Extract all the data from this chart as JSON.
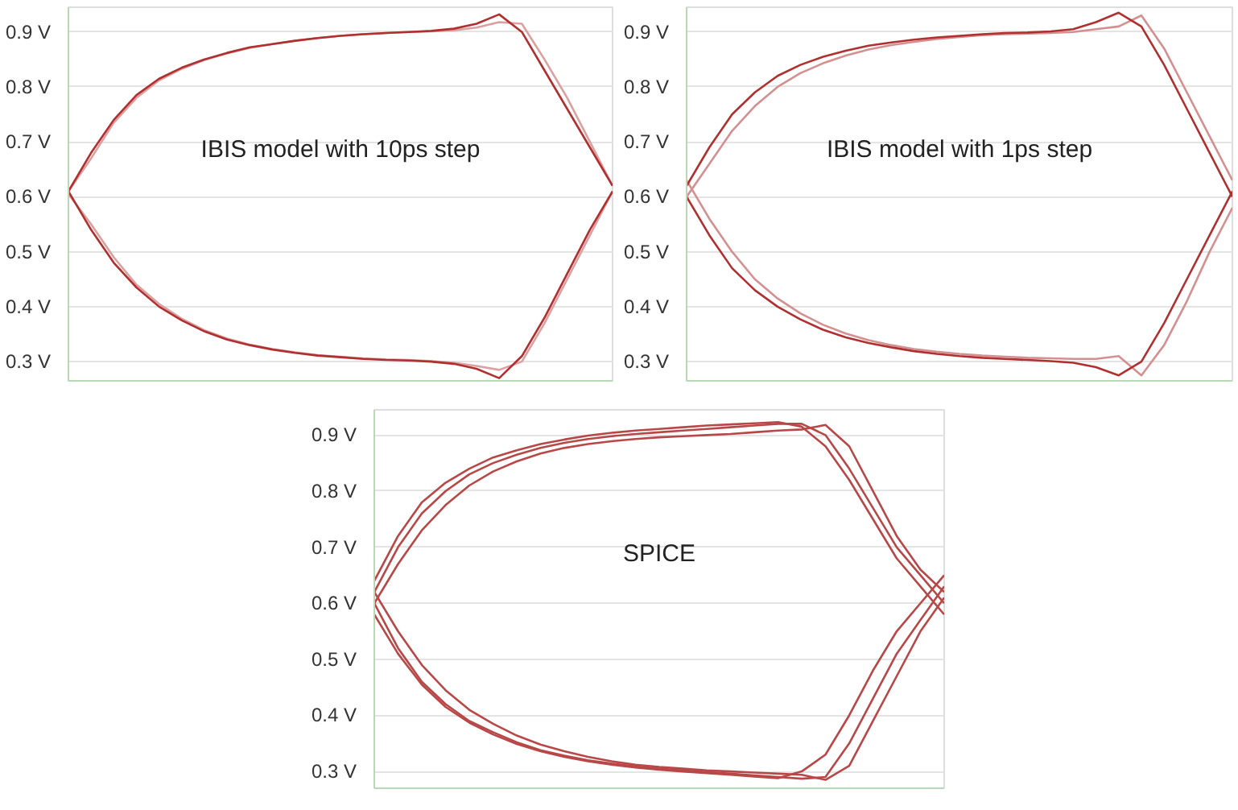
{
  "chart_data": [
    {
      "type": "line",
      "annotations": [
        "IBIS model with 10ps step"
      ],
      "categories": [
        null,
        null,
        null,
        null,
        null,
        null,
        null,
        null,
        null,
        null,
        null,
        null,
        null,
        null,
        null,
        null,
        null,
        null,
        null,
        null,
        null,
        null,
        null,
        null,
        null
      ],
      "ylim": [
        0.265,
        0.945
      ],
      "yticks": [
        {
          "value": 0.3,
          "label": "0.3 V"
        },
        {
          "value": 0.4,
          "label": "0.4 V"
        },
        {
          "value": 0.5,
          "label": "0.5 V"
        },
        {
          "value": 0.6,
          "label": "0.6 V"
        },
        {
          "value": 0.7,
          "label": "0.7 V"
        },
        {
          "value": 0.8,
          "label": "0.8 V"
        },
        {
          "value": 0.9,
          "label": "0.9 V"
        }
      ],
      "grid": "y",
      "tick_labels": "y",
      "series": [
        {
          "color": "#dca0a0",
          "values": [
            0.61,
            0.67,
            0.735,
            0.78,
            0.812,
            0.833,
            0.849,
            0.861,
            0.871,
            0.878,
            0.884,
            0.889,
            0.893,
            0.896,
            0.898,
            0.9,
            0.901,
            0.903,
            0.908,
            0.918,
            0.915,
            0.85,
            0.78,
            0.7,
            0.62
          ]
        },
        {
          "color": "#dca0a0",
          "values": [
            0.605,
            0.55,
            0.49,
            0.44,
            0.405,
            0.378,
            0.357,
            0.342,
            0.331,
            0.323,
            0.317,
            0.312,
            0.309,
            0.306,
            0.304,
            0.303,
            0.301,
            0.298,
            0.292,
            0.285,
            0.3,
            0.37,
            0.45,
            0.53,
            0.61
          ]
        },
        {
          "color": "#b03030",
          "values": [
            0.61,
            0.68,
            0.74,
            0.785,
            0.815,
            0.835,
            0.85,
            0.862,
            0.872,
            0.878,
            0.884,
            0.889,
            0.893,
            0.896,
            0.898,
            0.9,
            0.902,
            0.906,
            0.915,
            0.932,
            0.9,
            0.83,
            0.76,
            0.69,
            0.62
          ]
        },
        {
          "color": "#b03030",
          "values": [
            0.61,
            0.54,
            0.48,
            0.435,
            0.4,
            0.375,
            0.355,
            0.34,
            0.33,
            0.322,
            0.316,
            0.311,
            0.308,
            0.305,
            0.303,
            0.302,
            0.3,
            0.296,
            0.287,
            0.27,
            0.31,
            0.38,
            0.46,
            0.54,
            0.61
          ]
        }
      ]
    },
    {
      "type": "line",
      "annotations": [
        "IBIS model with 1ps step"
      ],
      "categories": [
        null,
        null,
        null,
        null,
        null,
        null,
        null,
        null,
        null,
        null,
        null,
        null,
        null,
        null,
        null,
        null,
        null,
        null,
        null,
        null,
        null,
        null,
        null,
        null,
        null
      ],
      "ylim": [
        0.265,
        0.945
      ],
      "yticks": [
        {
          "value": 0.3,
          "label": "0.3 V"
        },
        {
          "value": 0.4,
          "label": "0.4 V"
        },
        {
          "value": 0.5,
          "label": "0.5 V"
        },
        {
          "value": 0.6,
          "label": "0.6 V"
        },
        {
          "value": 0.7,
          "label": "0.7 V"
        },
        {
          "value": 0.8,
          "label": "0.8 V"
        },
        {
          "value": 0.9,
          "label": "0.9 V"
        }
      ],
      "grid": "y",
      "tick_labels": "y",
      "series": [
        {
          "color": "#d49090",
          "values": [
            0.6,
            0.66,
            0.72,
            0.765,
            0.8,
            0.825,
            0.843,
            0.857,
            0.868,
            0.876,
            0.882,
            0.887,
            0.891,
            0.894,
            0.896,
            0.897,
            0.898,
            0.9,
            0.905,
            0.91,
            0.93,
            0.87,
            0.79,
            0.71,
            0.63
          ]
        },
        {
          "color": "#d49090",
          "values": [
            0.63,
            0.56,
            0.5,
            0.45,
            0.415,
            0.388,
            0.367,
            0.351,
            0.339,
            0.33,
            0.323,
            0.318,
            0.314,
            0.311,
            0.309,
            0.307,
            0.306,
            0.305,
            0.305,
            0.31,
            0.275,
            0.33,
            0.41,
            0.5,
            0.58
          ]
        },
        {
          "color": "#b03030",
          "values": [
            0.62,
            0.69,
            0.75,
            0.79,
            0.82,
            0.84,
            0.855,
            0.866,
            0.875,
            0.881,
            0.886,
            0.89,
            0.893,
            0.896,
            0.898,
            0.899,
            0.901,
            0.905,
            0.918,
            0.935,
            0.91,
            0.84,
            0.76,
            0.68,
            0.6
          ]
        },
        {
          "color": "#b03030",
          "values": [
            0.6,
            0.53,
            0.47,
            0.43,
            0.4,
            0.377,
            0.358,
            0.344,
            0.334,
            0.326,
            0.319,
            0.314,
            0.31,
            0.307,
            0.305,
            0.303,
            0.301,
            0.298,
            0.29,
            0.275,
            0.3,
            0.37,
            0.45,
            0.53,
            0.61
          ]
        }
      ]
    },
    {
      "type": "line",
      "annotations": [
        "SPICE"
      ],
      "categories": [
        null,
        null,
        null,
        null,
        null,
        null,
        null,
        null,
        null,
        null,
        null,
        null,
        null,
        null,
        null,
        null,
        null,
        null,
        null,
        null,
        null,
        null,
        null,
        null,
        null
      ],
      "ylim": [
        0.27,
        0.945
      ],
      "yticks": [
        {
          "value": 0.3,
          "label": "0.3 V"
        },
        {
          "value": 0.4,
          "label": "0.4 V"
        },
        {
          "value": 0.5,
          "label": "0.5 V"
        },
        {
          "value": 0.6,
          "label": "0.6 V"
        },
        {
          "value": 0.7,
          "label": "0.7 V"
        },
        {
          "value": 0.8,
          "label": "0.8 V"
        },
        {
          "value": 0.9,
          "label": "0.9 V"
        }
      ],
      "grid": "y",
      "tick_labels": "y",
      "series": [
        {
          "color": "#b84848",
          "values": [
            0.62,
            0.7,
            0.76,
            0.8,
            0.83,
            0.85,
            0.865,
            0.877,
            0.886,
            0.893,
            0.898,
            0.902,
            0.905,
            0.908,
            0.911,
            0.914,
            0.917,
            0.92,
            0.92,
            0.9,
            0.84,
            0.77,
            0.7,
            0.65,
            0.6
          ]
        },
        {
          "color": "#b84848",
          "values": [
            0.6,
            0.67,
            0.73,
            0.775,
            0.81,
            0.835,
            0.853,
            0.867,
            0.877,
            0.884,
            0.889,
            0.893,
            0.896,
            0.898,
            0.9,
            0.902,
            0.905,
            0.908,
            0.91,
            0.918,
            0.88,
            0.8,
            0.72,
            0.66,
            0.62
          ]
        },
        {
          "color": "#b84848",
          "values": [
            0.64,
            0.72,
            0.78,
            0.815,
            0.84,
            0.86,
            0.873,
            0.884,
            0.892,
            0.899,
            0.904,
            0.908,
            0.911,
            0.914,
            0.917,
            0.919,
            0.921,
            0.923,
            0.915,
            0.88,
            0.82,
            0.75,
            0.68,
            0.63,
            0.58
          ]
        },
        {
          "color": "#b84848",
          "values": [
            0.6,
            0.52,
            0.46,
            0.42,
            0.39,
            0.37,
            0.352,
            0.338,
            0.328,
            0.32,
            0.314,
            0.309,
            0.305,
            0.302,
            0.299,
            0.296,
            0.293,
            0.29,
            0.287,
            0.29,
            0.35,
            0.43,
            0.51,
            0.57,
            0.63
          ]
        },
        {
          "color": "#b84848",
          "values": [
            0.62,
            0.55,
            0.49,
            0.445,
            0.41,
            0.385,
            0.364,
            0.348,
            0.336,
            0.326,
            0.318,
            0.312,
            0.308,
            0.305,
            0.302,
            0.3,
            0.298,
            0.296,
            0.294,
            0.285,
            0.31,
            0.39,
            0.47,
            0.55,
            0.61
          ]
        },
        {
          "color": "#b84848",
          "values": [
            0.58,
            0.51,
            0.455,
            0.415,
            0.387,
            0.366,
            0.349,
            0.336,
            0.326,
            0.318,
            0.312,
            0.307,
            0.303,
            0.3,
            0.297,
            0.294,
            0.291,
            0.288,
            0.3,
            0.33,
            0.4,
            0.48,
            0.55,
            0.6,
            0.65
          ]
        }
      ]
    }
  ]
}
